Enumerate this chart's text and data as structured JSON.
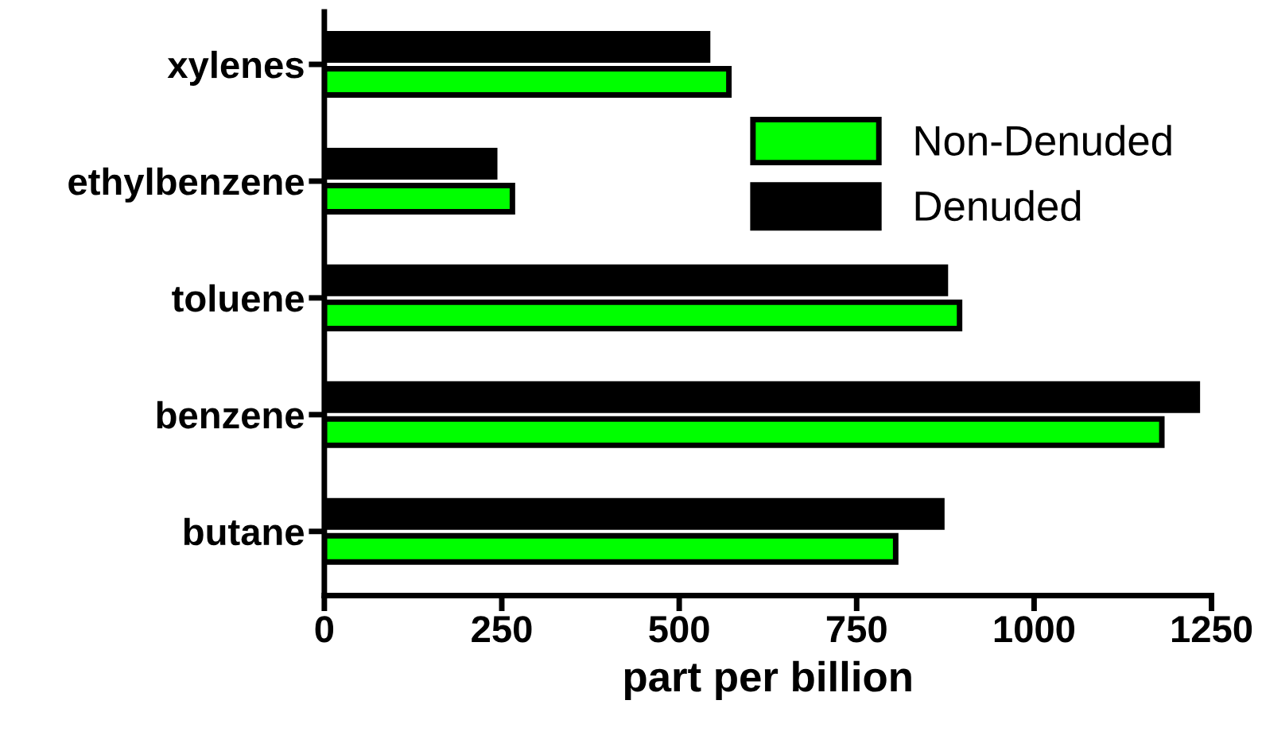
{
  "chart_data": {
    "type": "bar",
    "orientation": "horizontal",
    "xlabel": "part per billion",
    "categories": [
      "xylenes",
      "ethylbenzene",
      "toluene",
      "benzene",
      "butane"
    ],
    "series": [
      {
        "name": "Non-Denuded",
        "color": "#00ff00",
        "values": [
          570,
          265,
          895,
          1180,
          805
        ]
      },
      {
        "name": "Denuded",
        "color": "#000000",
        "values": [
          540,
          240,
          875,
          1230,
          870
        ]
      }
    ],
    "xlim": [
      0,
      1250
    ],
    "xticks": [
      0,
      250,
      500,
      750,
      1000,
      1250
    ],
    "grid": false,
    "legend": "top right"
  }
}
